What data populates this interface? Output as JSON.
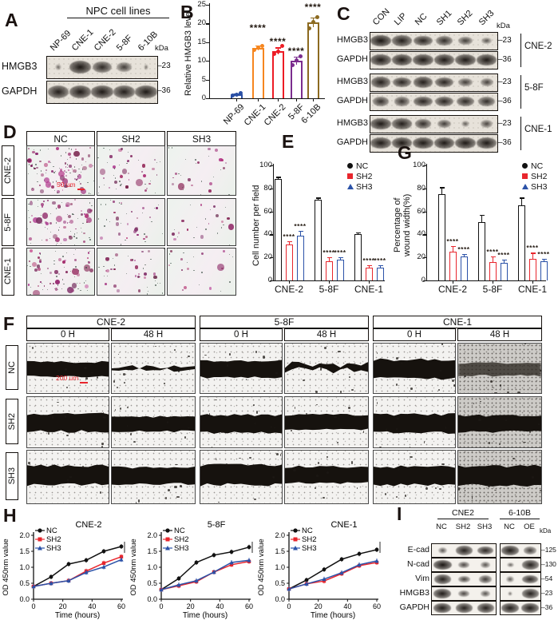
{
  "panel_letters": {
    "A": "A",
    "B": "B",
    "C": "C",
    "D": "D",
    "E": "E",
    "F": "F",
    "G": "G",
    "H": "H",
    "I": "I"
  },
  "colors": {
    "nc": "#111111",
    "sh2": "#e8262d",
    "sh3": "#2b52a8",
    "scale_text": "#e8262d",
    "bar_blue": "#2b50a5",
    "bar_orange": "#f6861f",
    "bar_red": "#ed1c24",
    "bar_purple": "#7b2d8e",
    "bar_brown": "#8c6a20"
  },
  "panelA": {
    "header": "NPC cell lines",
    "kda_label": "kDa",
    "lanes": [
      "NP-69",
      "CNE-1",
      "CNE-2",
      "5-8F",
      "6-10B"
    ],
    "rows": [
      {
        "name": "HMGB3",
        "kda": "23",
        "bands": [
          0.15,
          0.92,
          0.75,
          0.55,
          0.08
        ]
      },
      {
        "name": "GAPDH",
        "kda": "36",
        "bands": [
          0.85,
          0.9,
          0.9,
          0.85,
          0.9
        ]
      }
    ]
  },
  "panelC": {
    "kda_label": "kDa",
    "lanes": [
      "CON",
      "LIP",
      "NC",
      "SH1",
      "SH2",
      "SH3"
    ],
    "groups": [
      {
        "cell": "CNE-2",
        "rows": [
          {
            "name": "HMGB3",
            "kda": "23",
            "bands": [
              0.95,
              0.85,
              0.8,
              0.7,
              0.55,
              0.35
            ]
          },
          {
            "name": "GAPDH",
            "kda": "36",
            "bands": [
              0.9,
              0.9,
              0.9,
              0.9,
              0.9,
              0.9
            ]
          }
        ]
      },
      {
        "cell": "5-8F",
        "rows": [
          {
            "name": "HMGB3",
            "kda": "23",
            "bands": [
              0.85,
              0.8,
              0.85,
              0.8,
              0.55,
              0.5
            ]
          },
          {
            "name": "GAPDH",
            "kda": "36",
            "bands": [
              0.7,
              0.65,
              0.8,
              0.8,
              0.75,
              0.7
            ]
          }
        ]
      },
      {
        "cell": "CNE-1",
        "rows": [
          {
            "name": "HMGB3",
            "kda": "23",
            "bands": [
              0.9,
              0.85,
              0.7,
              0.55,
              0.25,
              0.45
            ]
          },
          {
            "name": "GAPDH",
            "kda": "36",
            "bands": [
              0.9,
              0.9,
              0.9,
              0.9,
              0.9,
              0.9
            ]
          }
        ]
      }
    ]
  },
  "panelD": {
    "col_headers": [
      "NC",
      "SH2",
      "SH3"
    ],
    "row_headers": [
      "CNE-2",
      "5-8F",
      "CNE-1"
    ],
    "scale_label": "50 um",
    "cell_densities": [
      [
        55,
        26,
        15
      ],
      [
        45,
        20,
        13
      ],
      [
        40,
        23,
        12
      ]
    ]
  },
  "panelF": {
    "groups": [
      "CNE-2",
      "5-8F",
      "CNE-1"
    ],
    "time_headers": [
      "0 H",
      "48 H"
    ],
    "row_headers": [
      "NC",
      "SH2",
      "SH3"
    ],
    "scale_label": "200 um",
    "wounds": [
      [
        {
          "h": 0.34,
          "style": "solid",
          "bg": "light"
        },
        {
          "h": 0.14,
          "style": "broken",
          "bg": "light"
        },
        {
          "h": 0.38,
          "style": "solid",
          "bg": "light"
        },
        {
          "h": 0.26,
          "style": "broken",
          "bg": "light"
        },
        {
          "h": 0.44,
          "style": "solid",
          "bg": "light"
        },
        {
          "h": 0.3,
          "style": "fuzzy",
          "bg": "dark"
        }
      ],
      [
        {
          "h": 0.4,
          "style": "solid",
          "bg": "light"
        },
        {
          "h": 0.34,
          "style": "solid",
          "bg": "light"
        },
        {
          "h": 0.4,
          "style": "solid",
          "bg": "light"
        },
        {
          "h": 0.33,
          "style": "solid",
          "bg": "light"
        },
        {
          "h": 0.42,
          "style": "solid",
          "bg": "light"
        },
        {
          "h": 0.38,
          "style": "solid",
          "bg": "dark"
        }
      ],
      [
        {
          "h": 0.42,
          "style": "solid",
          "bg": "light"
        },
        {
          "h": 0.36,
          "style": "solid",
          "bg": "light"
        },
        {
          "h": 0.44,
          "style": "solid",
          "bg": "light"
        },
        {
          "h": 0.35,
          "style": "solid",
          "bg": "light"
        },
        {
          "h": 0.4,
          "style": "solid",
          "bg": "light"
        },
        {
          "h": 0.42,
          "style": "solid",
          "bg": "dark"
        }
      ]
    ]
  },
  "panelI": {
    "kda_label": "kDa",
    "groups": [
      {
        "name": "CNE2",
        "lanes": [
          "NC",
          "SH2",
          "SH3"
        ]
      },
      {
        "name": "6-10B",
        "lanes": [
          "NC",
          "OE"
        ]
      }
    ],
    "rows": [
      {
        "name": "E-cad",
        "kda": "125",
        "bands": [
          [
            0.35,
            0.85,
            0.8
          ],
          [
            0.9,
            0.6
          ]
        ]
      },
      {
        "name": "N-cad",
        "kda": "130",
        "bands": [
          [
            0.95,
            0.5,
            0.4
          ],
          [
            0.25,
            0.85
          ]
        ]
      },
      {
        "name": "Vim",
        "kda": "54",
        "bands": [
          [
            0.85,
            0.55,
            0.6
          ],
          [
            0.3,
            0.8
          ]
        ]
      },
      {
        "name": "HMGB3",
        "kda": "23",
        "bands": [
          [
            0.9,
            0.5,
            0.4
          ],
          [
            0.12,
            0.85
          ]
        ]
      },
      {
        "name": "GAPDH",
        "kda": "36",
        "bands": [
          [
            0.9,
            0.85,
            0.85
          ],
          [
            0.9,
            0.9
          ]
        ]
      }
    ]
  },
  "chart_data": [
    {
      "id": "B",
      "type": "bar",
      "title": "",
      "ylabel": "Relative HMGB3 level",
      "categories": [
        "NP-69",
        "CNE-1",
        "CNE-2",
        "5-8F",
        "6-10B"
      ],
      "values": [
        1.0,
        13.5,
        12.7,
        10.1,
        20.3
      ],
      "errors": [
        0.3,
        0.7,
        0.9,
        1.1,
        1.3
      ],
      "points": [
        [
          0.7,
          1.0,
          1.3
        ],
        [
          13.0,
          13.6,
          14.1
        ],
        [
          11.8,
          12.6,
          13.9
        ],
        [
          8.9,
          10.2,
          11.3
        ],
        [
          18.8,
          20.4,
          21.6
        ]
      ],
      "bar_colors": [
        "#2b50a5",
        "#f6861f",
        "#ed1c24",
        "#7b2d8e",
        "#8c6a20"
      ],
      "significance": [
        "",
        "****",
        "****",
        "****",
        "****"
      ],
      "ylim": [
        0,
        25
      ],
      "yticks": [
        0,
        5,
        10,
        15,
        20,
        25
      ],
      "grid": false
    },
    {
      "id": "E",
      "type": "grouped_bar",
      "ylabel": "Cell number per field",
      "categories": [
        "CNE-2",
        "5-8F",
        "CNE-1"
      ],
      "series": [
        {
          "name": "NC",
          "color": "#111111",
          "marker": "circle",
          "values": [
            88,
            70,
            40
          ],
          "errors": [
            2,
            2,
            2
          ]
        },
        {
          "name": "SH2",
          "color": "#e8262d",
          "marker": "square",
          "values": [
            31,
            17,
            11
          ],
          "errors": [
            3,
            3,
            2
          ]
        },
        {
          "name": "SH3",
          "color": "#2b52a8",
          "marker": "triangle",
          "values": [
            39,
            18,
            11
          ],
          "errors": [
            4,
            2,
            2
          ]
        }
      ],
      "significance": [
        [
          "",
          "",
          ""
        ],
        [
          "****",
          "****",
          "****"
        ],
        [
          "****",
          "****",
          "****"
        ]
      ],
      "ylim": [
        0,
        100
      ],
      "yticks": [
        0,
        20,
        40,
        60,
        80,
        100
      ],
      "legend_position": "top-right",
      "grid": false
    },
    {
      "id": "G",
      "type": "grouped_bar",
      "ylabel": "Percentage of\nwound width(%)",
      "categories": [
        "CNE-2",
        "5-8F",
        "CNE-1"
      ],
      "series": [
        {
          "name": "NC",
          "color": "#111111",
          "marker": "circle",
          "values": [
            75,
            51,
            65
          ],
          "errors": [
            6,
            6,
            7
          ]
        },
        {
          "name": "SH2",
          "color": "#e8262d",
          "marker": "square",
          "values": [
            25,
            16,
            19
          ],
          "errors": [
            5,
            5,
            5
          ]
        },
        {
          "name": "SH3",
          "color": "#2b52a8",
          "marker": "triangle",
          "values": [
            21,
            15,
            17
          ],
          "errors": [
            2,
            3,
            2
          ]
        }
      ],
      "significance": [
        [
          "",
          "",
          ""
        ],
        [
          "****",
          "****",
          "****"
        ],
        [
          "****",
          "****",
          "****"
        ]
      ],
      "ylim": [
        0,
        100
      ],
      "yticks": [
        0,
        20,
        40,
        60,
        80,
        100
      ],
      "legend_position": "top-right",
      "grid": false
    },
    {
      "id": "H1",
      "type": "line",
      "title": "CNE-2",
      "xlabel": "Time (hours)",
      "ylabel": "OD 450nm value",
      "x": [
        0,
        12,
        24,
        36,
        48,
        60
      ],
      "xticks": [
        0,
        20,
        40,
        60
      ],
      "ylim": [
        0,
        2
      ],
      "yticks": [
        0.0,
        0.5,
        1.0,
        1.5,
        2.0
      ],
      "series": [
        {
          "name": "NC",
          "color": "#111111",
          "marker": "circle",
          "values": [
            0.4,
            0.7,
            1.1,
            1.22,
            1.5,
            1.65
          ]
        },
        {
          "name": "SH2",
          "color": "#e8262d",
          "marker": "square",
          "values": [
            0.4,
            0.5,
            0.58,
            0.88,
            1.13,
            1.33
          ]
        },
        {
          "name": "SH3",
          "color": "#2b52a8",
          "marker": "triangle",
          "values": [
            0.4,
            0.5,
            0.58,
            0.84,
            1.01,
            1.24
          ]
        }
      ],
      "significance": [
        "***",
        "***"
      ],
      "legend_position": "top-left"
    },
    {
      "id": "H2",
      "type": "line",
      "title": "5-8F",
      "xlabel": "Time (hours)",
      "ylabel": "OD 450nm value",
      "x": [
        0,
        12,
        24,
        36,
        48,
        60
      ],
      "xticks": [
        0,
        20,
        40,
        60
      ],
      "ylim": [
        0,
        2
      ],
      "yticks": [
        0.0,
        0.5,
        1.0,
        1.5,
        2.0
      ],
      "series": [
        {
          "name": "NC",
          "color": "#111111",
          "marker": "circle",
          "values": [
            0.3,
            0.65,
            1.15,
            1.38,
            1.48,
            1.63
          ]
        },
        {
          "name": "SH2",
          "color": "#e8262d",
          "marker": "square",
          "values": [
            0.3,
            0.42,
            0.55,
            0.85,
            1.08,
            1.18
          ]
        },
        {
          "name": "SH3",
          "color": "#2b52a8",
          "marker": "triangle",
          "values": [
            0.3,
            0.45,
            0.58,
            0.85,
            1.15,
            1.22
          ]
        }
      ],
      "significance": [
        "***",
        "**"
      ],
      "legend_position": "top-left"
    },
    {
      "id": "H3",
      "type": "line",
      "title": "CNE-1",
      "xlabel": "Time (hours)",
      "ylabel": "OD 450nm value",
      "x": [
        0,
        12,
        24,
        36,
        48,
        60
      ],
      "xticks": [
        0,
        20,
        40,
        60
      ],
      "ylim": [
        0,
        2
      ],
      "yticks": [
        0.0,
        0.5,
        1.0,
        1.5,
        2.0
      ],
      "series": [
        {
          "name": "NC",
          "color": "#111111",
          "marker": "circle",
          "values": [
            0.32,
            0.6,
            0.93,
            1.25,
            1.42,
            1.55
          ]
        },
        {
          "name": "SH2",
          "color": "#e8262d",
          "marker": "square",
          "values": [
            0.32,
            0.48,
            0.57,
            0.8,
            1.05,
            1.15
          ]
        },
        {
          "name": "SH3",
          "color": "#2b52a8",
          "marker": "triangle",
          "values": [
            0.32,
            0.48,
            0.63,
            0.83,
            1.08,
            1.2
          ]
        }
      ],
      "significance": [
        "**",
        "*"
      ],
      "legend_position": "top-left"
    }
  ]
}
